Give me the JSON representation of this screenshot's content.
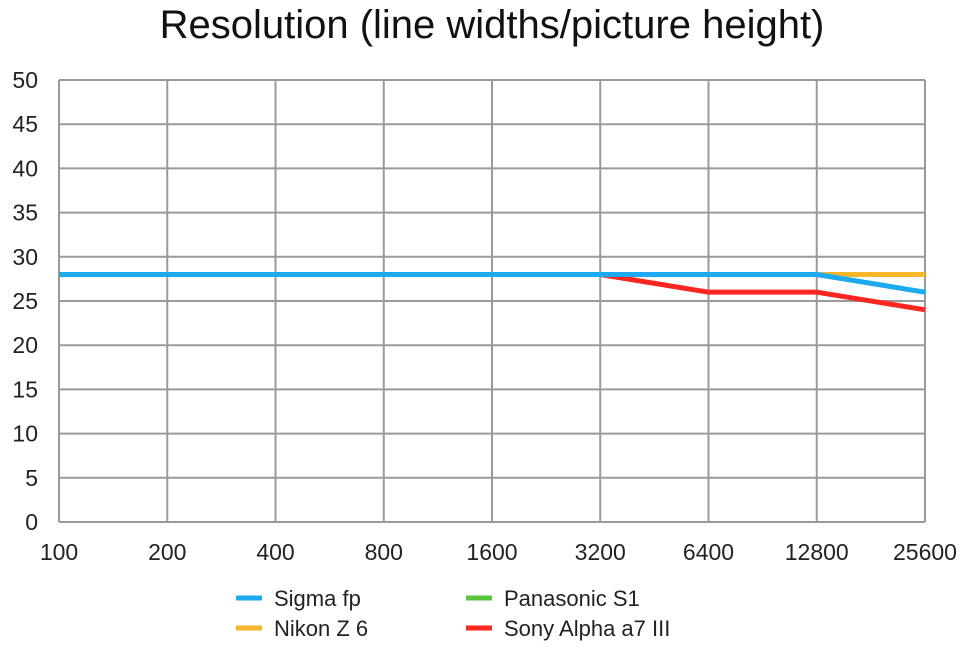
{
  "chart_data": {
    "type": "line",
    "title": "Resolution (line widths/picture height)",
    "xlabel": "",
    "ylabel": "",
    "x": [
      "100",
      "200",
      "400",
      "800",
      "1600",
      "3200",
      "6400",
      "12800",
      "25600"
    ],
    "ylim": [
      0,
      50
    ],
    "yticks": [
      "0",
      "5",
      "10",
      "15",
      "20",
      "25",
      "30",
      "35",
      "40",
      "45",
      "50"
    ],
    "grid": true,
    "legend_position": "bottom",
    "series": [
      {
        "name": "Panasonic S1",
        "color": "#5ac43c",
        "values": [
          28,
          28,
          28,
          28,
          28,
          28,
          28,
          28,
          28
        ]
      },
      {
        "name": "Nikon Z 6",
        "color": "#f8b62d",
        "values": [
          28,
          28,
          28,
          28,
          28,
          28,
          28,
          28,
          28
        ]
      },
      {
        "name": "Sony Alpha a7 III",
        "color": "#fa2620",
        "values": [
          28,
          28,
          28,
          28,
          28,
          28,
          26,
          26,
          24
        ]
      },
      {
        "name": "Sigma fp",
        "color": "#1eaaf1",
        "values": [
          28,
          28,
          28,
          28,
          28,
          28,
          28,
          28,
          26
        ]
      }
    ],
    "legend_order": [
      "Sigma fp",
      "Nikon Z 6",
      "Panasonic S1",
      "Sony Alpha a7 III"
    ]
  }
}
